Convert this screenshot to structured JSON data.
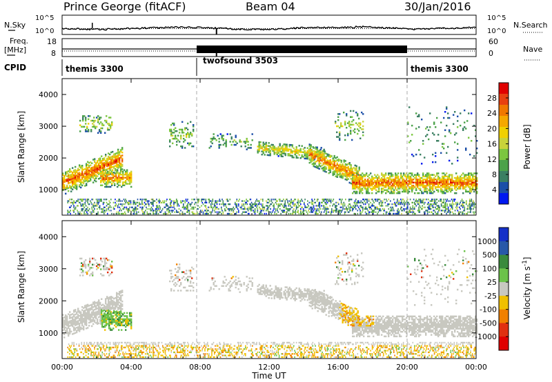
{
  "header": {
    "station": "Prince George (fitACF)",
    "beam": "Beam 04",
    "date": "30/Jan/2016"
  },
  "aux_panels": {
    "nsky_label": "N.Sky",
    "nsky_ticks": [
      "10^5",
      "10^0"
    ],
    "nsearch_label": "N.Search",
    "freq_label": "Freq.",
    "freq_unit": "[MHz]",
    "freq_ticks": [
      "18",
      "8"
    ],
    "nave_label": "Nave",
    "nave_ticks": [
      "60",
      "0"
    ],
    "cpid_label": "CPID",
    "cpid_segments": [
      {
        "name": "themis 3300",
        "start": 0,
        "end": 7.8
      },
      {
        "name": "twofsound 3503",
        "start": 7.8,
        "end": 20.0
      },
      {
        "name": "themis 3300",
        "start": 20.0,
        "end": 24.0
      }
    ]
  },
  "chart_data": [
    {
      "type": "heatmap",
      "title": "",
      "quantity": "Power",
      "xlabel": "Time UT",
      "ylabel": "Slant Range [km]",
      "colorbar_label": "Power [dB]",
      "colorbar_ticks": [
        "28",
        "24",
        "20",
        "16",
        "12",
        "8",
        "4"
      ],
      "colorbar_values": [
        28,
        24,
        20,
        16,
        12,
        8,
        4
      ],
      "colors": [
        "#0018f0",
        "#1c4fa8",
        "#3b7f62",
        "#4ca24a",
        "#7cc640",
        "#c8d23a",
        "#f0d000",
        "#f5a800",
        "#f07800",
        "#e84010",
        "#e00000"
      ],
      "xlim": [
        0,
        24
      ],
      "ylim": [
        200,
        4500
      ],
      "yticks": [
        1000,
        2000,
        3000,
        4000
      ],
      "xticks": [
        "00:00",
        "04:00",
        "08:00",
        "12:00",
        "16:00",
        "20:00",
        "00:00"
      ],
      "features": [
        {
          "t": [
            0.0,
            3.5
          ],
          "range": [
            900,
            1900
          ],
          "level": "high"
        },
        {
          "t": [
            2.3,
            3.9
          ],
          "range": [
            1000,
            1700
          ],
          "level": "high"
        },
        {
          "t": [
            1.0,
            2.8
          ],
          "range": [
            2700,
            3400
          ],
          "level": "mid"
        },
        {
          "t": [
            6.3,
            7.6
          ],
          "range": [
            2200,
            3200
          ],
          "level": "mid"
        },
        {
          "t": [
            8.5,
            11.0
          ],
          "range": [
            2100,
            2800
          ],
          "level": "low"
        },
        {
          "t": [
            11.5,
            15.5
          ],
          "range": [
            1900,
            2500
          ],
          "level": "mid"
        },
        {
          "t": [
            14.5,
            17.0
          ],
          "range": [
            1100,
            2200
          ],
          "level": "high"
        },
        {
          "t": [
            16.5,
            24.0
          ],
          "range": [
            800,
            1500
          ],
          "level": "high"
        }
      ]
    },
    {
      "type": "heatmap",
      "title": "",
      "quantity": "Velocity",
      "xlabel": "Time UT",
      "ylabel": "Slant Range [km]",
      "colorbar_label": "Velocity [m s-1]",
      "colorbar_ticks": [
        "1000",
        "500",
        "100",
        "25",
        "-25",
        "-100",
        "-500",
        "-1000"
      ],
      "colorbar_values": [
        1000,
        500,
        100,
        25,
        -25,
        -100,
        -500,
        -1000
      ],
      "colors": [
        "#1530c8",
        "#2858a8",
        "#3a8a3c",
        "#6cc24a",
        "#c8c8c0",
        "#f0c000",
        "#f08000",
        "#e03010",
        "#e00000"
      ],
      "xlim": [
        0,
        24
      ],
      "ylim": [
        200,
        4500
      ],
      "yticks": [
        1000,
        2000,
        3000,
        4000
      ],
      "xticks": [
        "00:00",
        "04:00",
        "08:00",
        "12:00",
        "16:00",
        "20:00",
        "00:00"
      ]
    }
  ],
  "cpid_boundaries_ut": [
    7.8,
    20.0
  ]
}
